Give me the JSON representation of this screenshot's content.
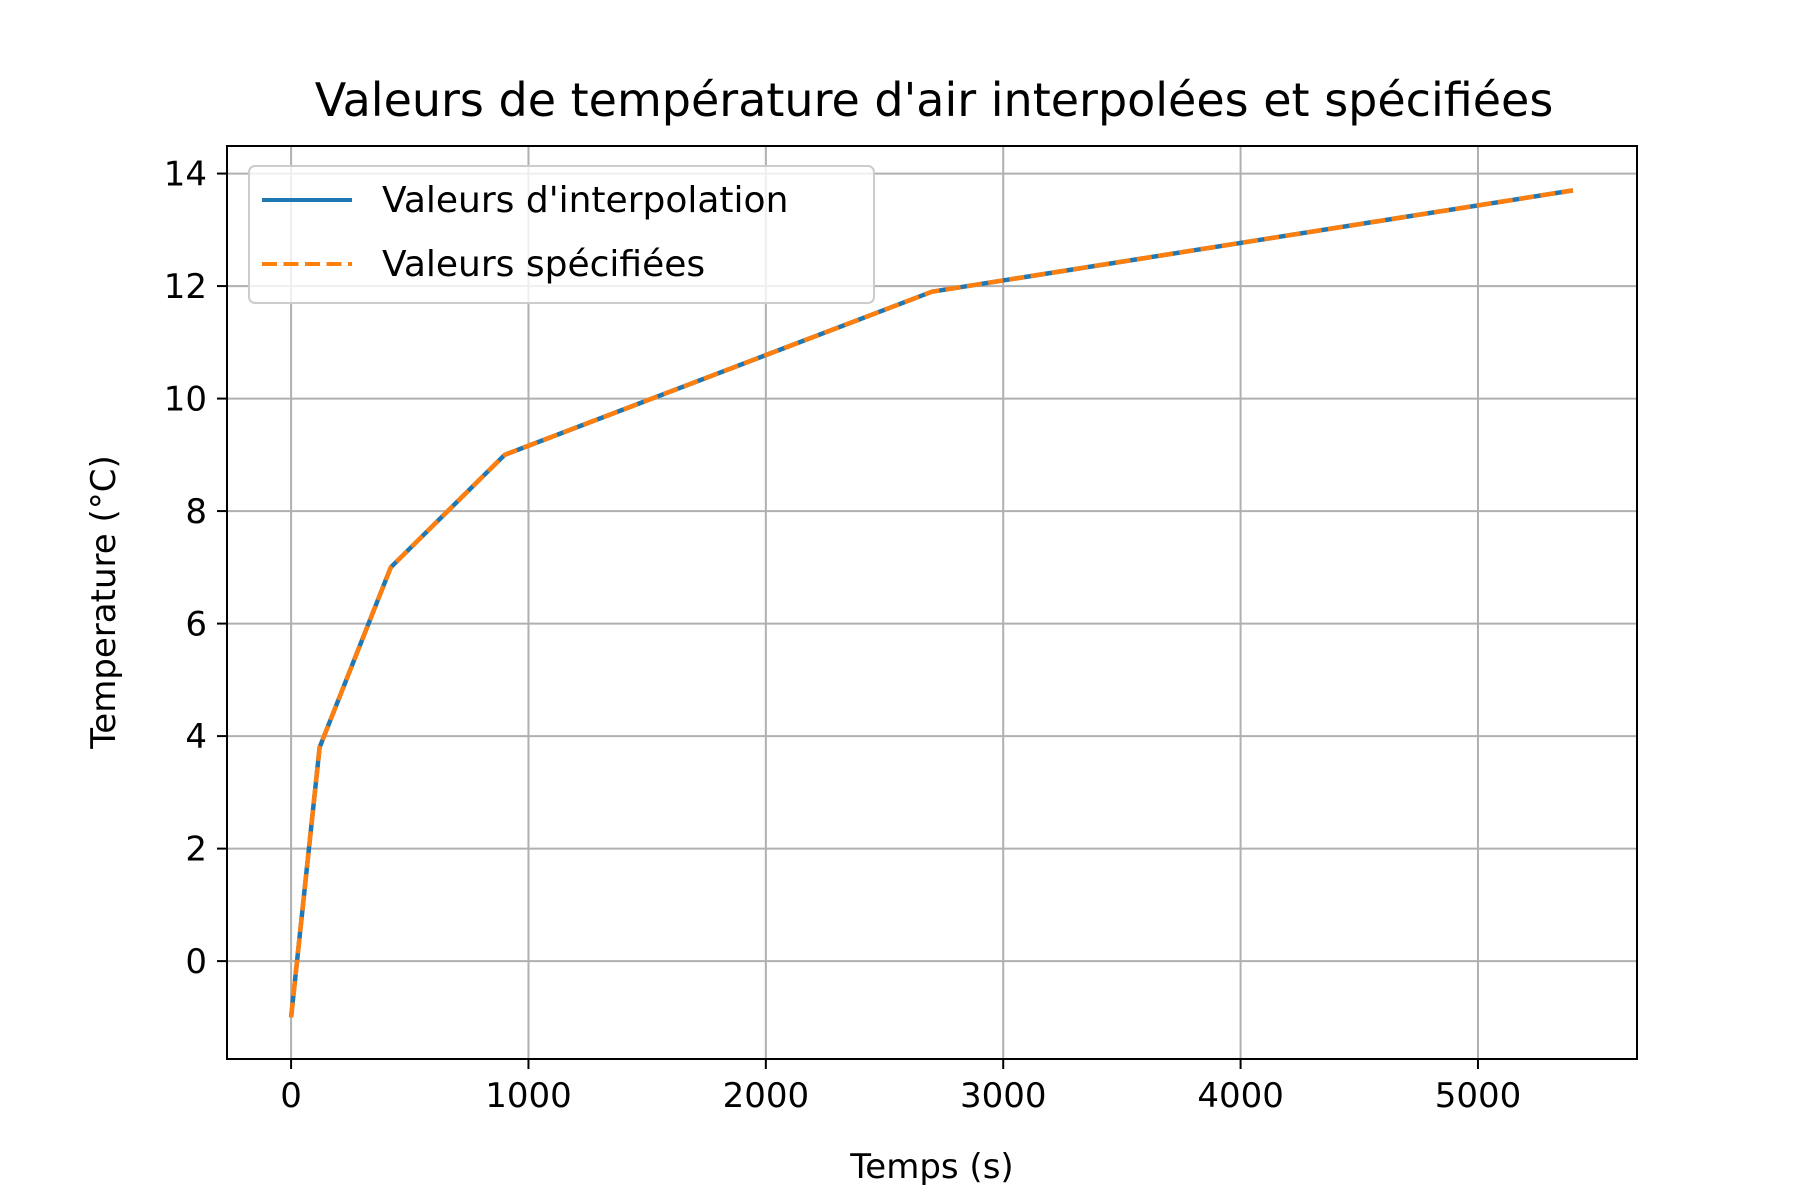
{
  "chart_data": {
    "type": "line",
    "title": "Valeurs de température d'air interpolées et spécifiées",
    "xlabel": "Temps (s)",
    "ylabel": "Temperature (°C)",
    "xlim": [
      -270,
      5670
    ],
    "ylim": [
      -1.74,
      14.49
    ],
    "xticks": [
      0,
      1000,
      2000,
      3000,
      4000,
      5000
    ],
    "yticks": [
      0,
      2,
      4,
      6,
      8,
      10,
      12,
      14
    ],
    "grid": true,
    "legend_position": "upper-left",
    "x": [
      0,
      120,
      420,
      900,
      2700,
      5400
    ],
    "series": [
      {
        "name": "Valeurs d'interpolation",
        "values": [
          -1.0,
          3.8,
          7.0,
          9.0,
          11.9,
          13.7
        ],
        "color": "#1f77b4",
        "style": "solid"
      },
      {
        "name": "Valeurs spécifiées",
        "values": [
          -1.0,
          3.8,
          7.0,
          9.0,
          11.9,
          13.7
        ],
        "color": "#ff7f0e",
        "style": "dashed"
      }
    ]
  }
}
